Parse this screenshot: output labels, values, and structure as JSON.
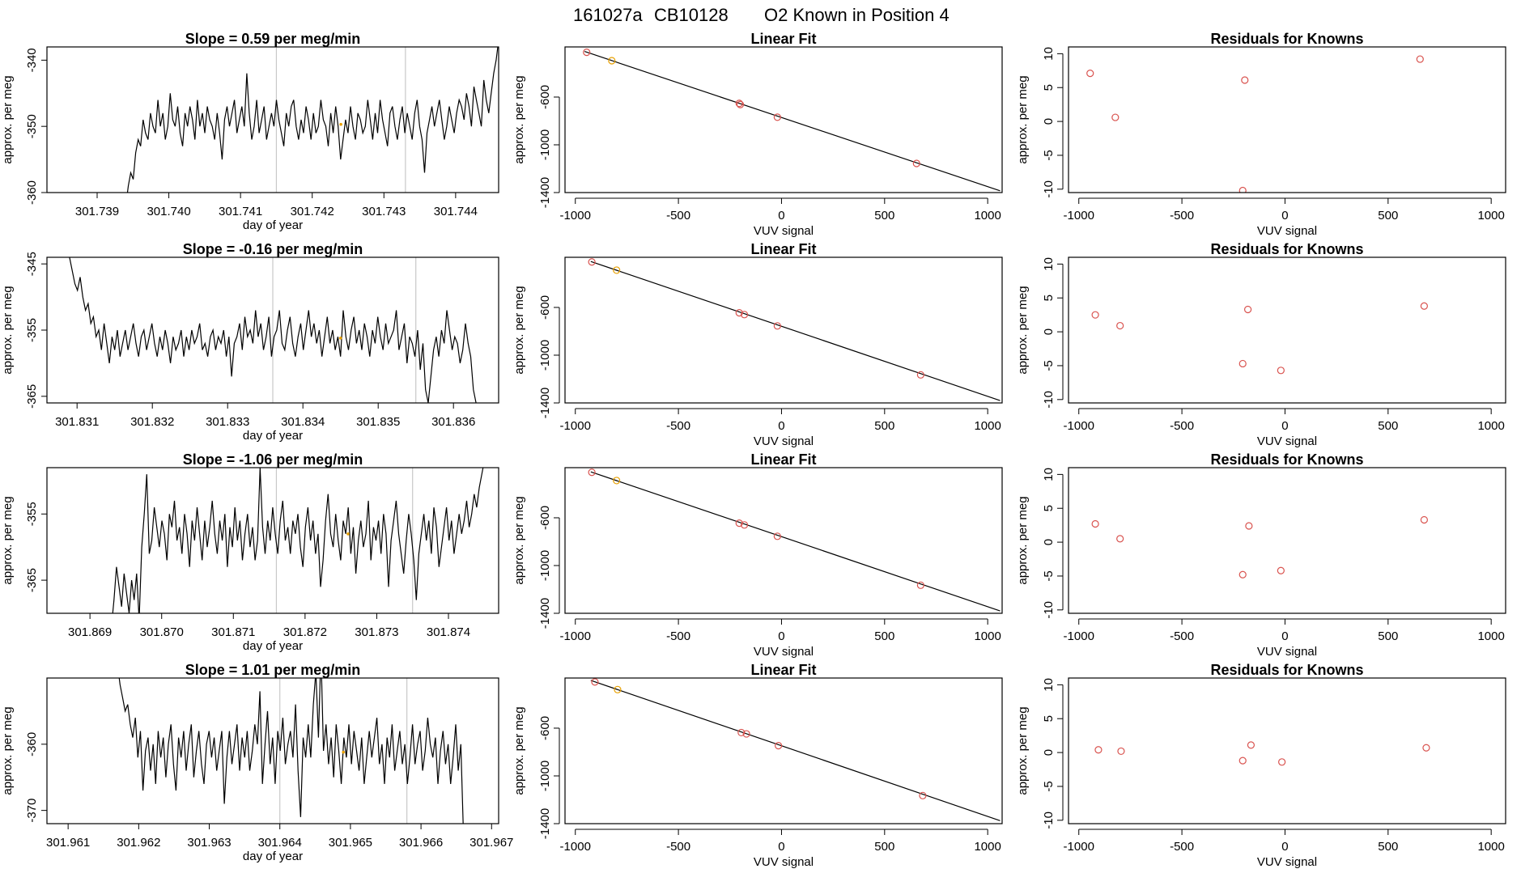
{
  "title_parts": [
    "161027a",
    "CB10128",
    "O2 Known in Position  4"
  ],
  "chart_data": [
    {
      "id": "ts1",
      "type": "line",
      "title": "Slope =  0.59  per meg/min",
      "xlabel": "day of year",
      "ylabel": "approx. per meg",
      "xlim": [
        301.7383,
        301.7446
      ],
      "ylim": [
        -360,
        -338
      ],
      "xticks": [
        "301.739",
        "301.740",
        "301.741",
        "301.742",
        "301.743",
        "301.744"
      ],
      "yticks": [
        "-340",
        "-350",
        "-360"
      ],
      "vlines": [
        301.7415,
        301.7433
      ],
      "marker": [
        301.7424,
        -349.7
      ],
      "seg_x": [
        301.7394,
        301.7446
      ],
      "series_y": [
        -362,
        -359,
        -357,
        -358,
        -354,
        -352,
        -353,
        -349,
        -351,
        -352,
        -348,
        -350,
        -351,
        -346,
        -350,
        -348,
        -352,
        -350,
        -345,
        -349,
        -350,
        -347,
        -351,
        -353,
        -348,
        -350,
        -347,
        -349,
        -352,
        -346,
        -350,
        -348,
        -351,
        -347,
        -349,
        -350,
        -352,
        -348,
        -351,
        -355,
        -349,
        -347,
        -350,
        -348,
        -346,
        -351,
        -349,
        -347,
        -350,
        -342,
        -348,
        -352,
        -350,
        -346,
        -351,
        -349,
        -347,
        -352,
        -350,
        -348,
        -350,
        -346,
        -349,
        -351,
        -353,
        -348,
        -350,
        -347,
        -346,
        -350,
        -352,
        -349,
        -351,
        -347,
        -349,
        -352,
        -348,
        -351,
        -350,
        -346,
        -349,
        -350,
        -353,
        -348,
        -351,
        -347,
        -350,
        -355,
        -352,
        -349,
        -351,
        -347,
        -350,
        -352,
        -348,
        -349,
        -351,
        -350,
        -346,
        -349,
        -352,
        -348,
        -351,
        -346,
        -349,
        -351,
        -353,
        -348,
        -347,
        -350,
        -352,
        -349,
        -347,
        -351,
        -348,
        -350,
        -352,
        -348,
        -346,
        -350,
        -352,
        -357,
        -351,
        -349,
        -347,
        -350,
        -348,
        -346,
        -349,
        -352,
        -350,
        -347,
        -349,
        -351,
        -348,
        -346,
        -347,
        -349,
        -345,
        -347,
        -350,
        -344,
        -346,
        -348,
        -350,
        -343,
        -346,
        -348,
        -345,
        -342,
        -340,
        -337
      ]
    },
    {
      "id": "fit1",
      "type": "scatter",
      "title": "Linear Fit",
      "xlabel": "VUV signal",
      "ylabel": "approx. per meg",
      "xlim": [
        -1050,
        1070
      ],
      "ylim": [
        -1400,
        -180
      ],
      "xticks": [
        -1000,
        -500,
        0,
        500,
        1000
      ],
      "yticks": [
        -600,
        -1000,
        -1400
      ],
      "line": [
        [
          -955,
          -218
        ],
        [
          1060,
          -1385
        ]
      ],
      "points": [
        [
          -945,
          -225
        ],
        [
          -205,
          -653
        ],
        [
          -200,
          -663
        ],
        [
          -20,
          -769
        ],
        [
          655,
          -1156
        ]
      ],
      "points_hl": [
        [
          -823,
          -295
        ]
      ]
    },
    {
      "id": "res1",
      "type": "scatter",
      "title": "Residuals for Knowns",
      "xlabel": "VUV signal",
      "ylabel": "approx. per meg",
      "xlim": [
        -1050,
        1070
      ],
      "ylim": [
        -10.5,
        11
      ],
      "xticks": [
        -1000,
        -500,
        0,
        500,
        1000
      ],
      "yticks": [
        10,
        5,
        0,
        -5,
        -10
      ],
      "points": [
        [
          -945,
          7.1
        ],
        [
          -823,
          0.6
        ],
        [
          -195,
          6.1
        ],
        [
          -205,
          -10.2
        ],
        [
          655,
          9.2
        ]
      ]
    },
    {
      "id": "ts2",
      "type": "line",
      "title": "Slope =  -0.16  per meg/min",
      "xlabel": "day of year",
      "ylabel": "approx. per meg",
      "xlim": [
        301.8306,
        301.8366
      ],
      "ylim": [
        -366,
        -344
      ],
      "xticks": [
        "301.831",
        "301.832",
        "301.833",
        "301.834",
        "301.835",
        "301.836"
      ],
      "yticks": [
        "-345",
        "-355",
        "-365"
      ],
      "vlines": [
        301.8336,
        301.8355
      ],
      "marker": [
        301.8345,
        -356.2
      ],
      "seg_x": [
        301.8309,
        301.8363
      ],
      "series_y": [
        -344,
        -346,
        -348,
        -349,
        -347,
        -350,
        -352,
        -351,
        -354,
        -353,
        -356,
        -355,
        -358,
        -354,
        -357,
        -360,
        -356,
        -358,
        -355,
        -359,
        -357,
        -355,
        -358,
        -356,
        -354,
        -357,
        -359,
        -356,
        -355,
        -358,
        -356,
        -354,
        -357,
        -359,
        -356,
        -358,
        -355,
        -357,
        -360,
        -356,
        -358,
        -357,
        -355,
        -359,
        -356,
        -358,
        -355,
        -357,
        -356,
        -354,
        -358,
        -357,
        -359,
        -356,
        -355,
        -358,
        -356,
        -357,
        -355,
        -359,
        -356,
        -362,
        -357,
        -356,
        -354,
        -358,
        -353,
        -356,
        -355,
        -357,
        -352,
        -356,
        -354,
        -358,
        -356,
        -353,
        -359,
        -356,
        -355,
        -352,
        -357,
        -358,
        -355,
        -353,
        -357,
        -359,
        -356,
        -354,
        -358,
        -355,
        -352,
        -356,
        -354,
        -357,
        -355,
        -359,
        -356,
        -353,
        -357,
        -355,
        -358,
        -356,
        -359,
        -352,
        -356,
        -358,
        -355,
        -353,
        -357,
        -355,
        -358,
        -354,
        -356,
        -359,
        -355,
        -357,
        -353,
        -356,
        -358,
        -354,
        -357,
        -356,
        -355,
        -352,
        -358,
        -356,
        -354,
        -360,
        -356,
        -357,
        -359,
        -355,
        -361,
        -357,
        -364,
        -366,
        -362,
        -358,
        -356,
        -359,
        -355,
        -357,
        -352,
        -355,
        -358,
        -356,
        -357,
        -360,
        -358,
        -354,
        -357,
        -359,
        -364,
        -366
      ]
    },
    {
      "id": "fit2",
      "type": "scatter",
      "title": "Linear Fit",
      "xlabel": "VUV signal",
      "ylabel": "approx. per meg",
      "xlim": [
        -1050,
        1070
      ],
      "ylim": [
        -1400,
        -180
      ],
      "xticks": [
        -1000,
        -500,
        0,
        500,
        1000
      ],
      "yticks": [
        -600,
        -1000,
        -1400
      ],
      "line": [
        [
          -925,
          -215
        ],
        [
          1060,
          -1380
        ]
      ],
      "points": [
        [
          -920,
          -219
        ],
        [
          -205,
          -645
        ],
        [
          -180,
          -660
        ],
        [
          -20,
          -755
        ],
        [
          675,
          -1165
        ]
      ],
      "points_hl": [
        [
          -800,
          -288
        ]
      ]
    },
    {
      "id": "res2",
      "type": "scatter",
      "title": "Residuals for Knowns",
      "xlabel": "VUV signal",
      "ylabel": "approx. per meg",
      "xlim": [
        -1050,
        1070
      ],
      "ylim": [
        -10.5,
        11
      ],
      "xticks": [
        -1000,
        -500,
        0,
        500,
        1000
      ],
      "yticks": [
        10,
        5,
        0,
        -5,
        -10
      ],
      "points": [
        [
          -920,
          2.5
        ],
        [
          -800,
          0.9
        ],
        [
          -180,
          3.3
        ],
        [
          -205,
          -4.7
        ],
        [
          -20,
          -5.7
        ],
        [
          675,
          3.8
        ]
      ]
    },
    {
      "id": "ts3",
      "type": "line",
      "title": "Slope =  -1.06  per meg/min",
      "xlabel": "day of year",
      "ylabel": "approx. per meg",
      "xlim": [
        301.8684,
        301.8747
      ],
      "ylim": [
        -370,
        -348
      ],
      "xticks": [
        "301.869",
        "301.870",
        "301.871",
        "301.872",
        "301.873",
        "301.874"
      ],
      "yticks": [
        "-355",
        "-365"
      ],
      "vlines": [
        301.8716,
        301.8735
      ],
      "marker": [
        301.8726,
        -358
      ],
      "seg_x": [
        301.8693,
        301.8745
      ],
      "series_y": [
        -372,
        -368,
        -363,
        -366,
        -369,
        -364,
        -367,
        -370,
        -365,
        -368,
        -364,
        -371,
        -360,
        -355,
        -349,
        -361,
        -359,
        -354,
        -357,
        -360,
        -356,
        -358,
        -362,
        -355,
        -357,
        -353,
        -359,
        -357,
        -361,
        -355,
        -358,
        -363,
        -356,
        -359,
        -354,
        -358,
        -362,
        -356,
        -360,
        -357,
        -353,
        -358,
        -361,
        -356,
        -359,
        -355,
        -363,
        -357,
        -360,
        -354,
        -359,
        -356,
        -362,
        -358,
        -355,
        -360,
        -357,
        -362,
        -359,
        -348,
        -357,
        -361,
        -356,
        -359,
        -354,
        -358,
        -361,
        -356,
        -353,
        -359,
        -357,
        -361,
        -356,
        -358,
        -355,
        -360,
        -363,
        -357,
        -354,
        -359,
        -356,
        -361,
        -358,
        -366,
        -362,
        -356,
        -352,
        -358,
        -360,
        -355,
        -359,
        -362,
        -356,
        -358,
        -354,
        -361,
        -357,
        -364,
        -359,
        -356,
        -360,
        -358,
        -353,
        -362,
        -357,
        -359,
        -356,
        -361,
        -355,
        -358,
        -366,
        -359,
        -356,
        -353,
        -358,
        -361,
        -364,
        -359,
        -355,
        -358,
        -362,
        -368,
        -361,
        -358,
        -355,
        -359,
        -356,
        -361,
        -354,
        -357,
        -363,
        -360,
        -357,
        -354,
        -359,
        -356,
        -361,
        -358,
        -355,
        -358,
        -356,
        -353,
        -357,
        -355,
        -352,
        -354,
        -351,
        -349,
        -347
      ]
    },
    {
      "id": "fit3",
      "type": "scatter",
      "title": "Linear Fit",
      "xlabel": "VUV signal",
      "ylabel": "approx. per meg",
      "xlim": [
        -1050,
        1070
      ],
      "ylim": [
        -1400,
        -180
      ],
      "xticks": [
        -1000,
        -500,
        0,
        500,
        1000
      ],
      "yticks": [
        -600,
        -1000,
        -1400
      ],
      "line": [
        [
          -925,
          -215
        ],
        [
          1060,
          -1380
        ]
      ],
      "points": [
        [
          -920,
          -219
        ],
        [
          -205,
          -645
        ],
        [
          -180,
          -660
        ],
        [
          -20,
          -755
        ],
        [
          675,
          -1165
        ]
      ],
      "points_hl": [
        [
          -800,
          -288
        ]
      ]
    },
    {
      "id": "res3",
      "type": "scatter",
      "title": "Residuals for Knowns",
      "xlabel": "VUV signal",
      "ylabel": "approx. per meg",
      "xlim": [
        -1050,
        1070
      ],
      "ylim": [
        -10.5,
        11
      ],
      "xticks": [
        -1000,
        -500,
        0,
        500,
        1000
      ],
      "yticks": [
        10,
        5,
        0,
        -5,
        -10
      ],
      "points": [
        [
          -920,
          2.7
        ],
        [
          -800,
          0.5
        ],
        [
          -175,
          2.4
        ],
        [
          -205,
          -4.8
        ],
        [
          -20,
          -4.2
        ],
        [
          675,
          3.3
        ]
      ]
    },
    {
      "id": "ts4",
      "type": "line",
      "title": "Slope =  1.01  per meg/min",
      "xlabel": "day of year",
      "ylabel": "approx. per meg",
      "xlim": [
        301.9607,
        301.9671
      ],
      "ylim": [
        -372,
        -350
      ],
      "xticks": [
        "301.961",
        "301.962",
        "301.963",
        "301.964",
        "301.965",
        "301.966",
        "301.967"
      ],
      "yticks": [
        "-360",
        "-370"
      ],
      "vlines": [
        301.964,
        301.9658
      ],
      "marker": [
        301.9649,
        -361.2
      ],
      "seg_x": [
        301.9617,
        301.9666
      ],
      "series_y": [
        -348,
        -351,
        -353,
        -355,
        -354,
        -357,
        -359,
        -356,
        -362,
        -358,
        -367,
        -361,
        -359,
        -364,
        -360,
        -366,
        -358,
        -362,
        -359,
        -365,
        -360,
        -357,
        -363,
        -367,
        -359,
        -362,
        -358,
        -364,
        -360,
        -357,
        -365,
        -361,
        -358,
        -363,
        -366,
        -360,
        -358,
        -362,
        -359,
        -364,
        -361,
        -358,
        -369,
        -362,
        -358,
        -363,
        -360,
        -357,
        -364,
        -359,
        -362,
        -358,
        -364,
        -361,
        -357,
        -360,
        -352,
        -366,
        -360,
        -355,
        -363,
        -359,
        -366,
        -358,
        -361,
        -356,
        -363,
        -360,
        -358,
        -362,
        -354,
        -364,
        -371,
        -359,
        -362,
        -357,
        -362,
        -354,
        -349,
        -359,
        -346,
        -361,
        -357,
        -363,
        -359,
        -365,
        -357,
        -361,
        -366,
        -359,
        -362,
        -357,
        -363,
        -358,
        -361,
        -364,
        -359,
        -366,
        -362,
        -358,
        -362,
        -359,
        -356,
        -363,
        -360,
        -366,
        -359,
        -362,
        -357,
        -364,
        -361,
        -358,
        -363,
        -360,
        -366,
        -362,
        -357,
        -363,
        -360,
        -358,
        -364,
        -361,
        -356,
        -360,
        -362,
        -359,
        -366,
        -361,
        -358,
        -363,
        -360,
        -366,
        -362,
        -357,
        -364,
        -360,
        -373
      ]
    },
    {
      "id": "fit4",
      "type": "scatter",
      "title": "Linear Fit",
      "xlabel": "VUV signal",
      "ylabel": "approx. per meg",
      "xlim": [
        -1050,
        1070
      ],
      "ylim": [
        -1400,
        -180
      ],
      "xticks": [
        -1000,
        -500,
        0,
        500,
        1000
      ],
      "yticks": [
        -600,
        -1000,
        -1400
      ],
      "line": [
        [
          -925,
          -200
        ],
        [
          1060,
          -1375
        ]
      ],
      "points": [
        [
          -905,
          -213
        ],
        [
          -195,
          -637
        ],
        [
          -170,
          -648
        ],
        [
          -15,
          -747
        ],
        [
          685,
          -1165
        ]
      ],
      "points_hl": [
        [
          -795,
          -277
        ]
      ]
    },
    {
      "id": "res4",
      "type": "scatter",
      "title": "Residuals for Knowns",
      "xlabel": "VUV signal",
      "ylabel": "approx. per meg",
      "xlim": [
        -1050,
        1070
      ],
      "ylim": [
        -10.5,
        11
      ],
      "xticks": [
        -1000,
        -500,
        0,
        500,
        1000
      ],
      "yticks": [
        10,
        5,
        0,
        -5,
        -10
      ],
      "points": [
        [
          -905,
          0.4
        ],
        [
          -795,
          0.2
        ],
        [
          -165,
          1.1
        ],
        [
          -205,
          -1.2
        ],
        [
          -15,
          -1.4
        ],
        [
          685,
          0.7
        ]
      ]
    }
  ]
}
